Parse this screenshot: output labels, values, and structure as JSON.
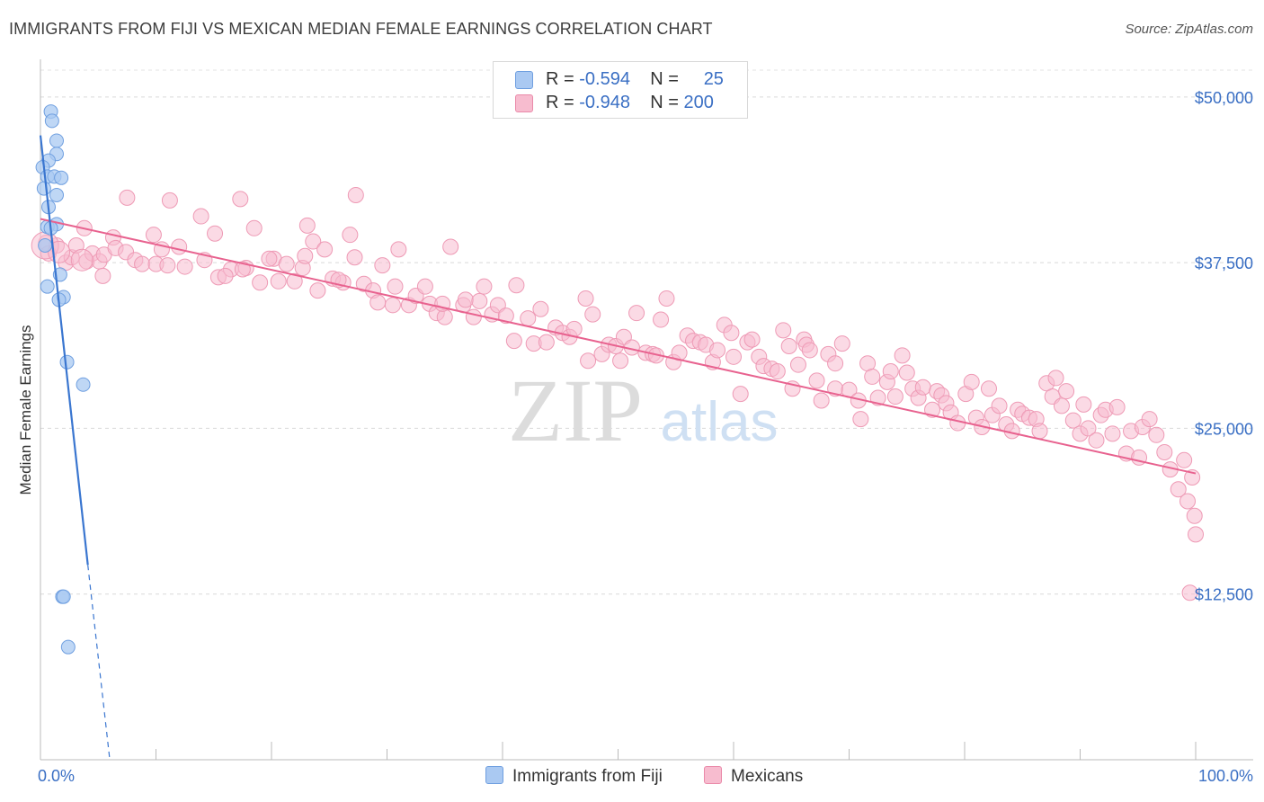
{
  "title": "IMMIGRANTS FROM FIJI VS MEXICAN MEDIAN FEMALE EARNINGS CORRELATION CHART",
  "source": "Source: ZipAtlas.com",
  "watermark": {
    "zip": "ZIP",
    "atlas": "atlas"
  },
  "legend": {
    "rows": [
      {
        "r_label": "R = ",
        "r_value": "-0.594",
        "n_label": "N = ",
        "n_value": "25",
        "color": "#a9c8f0"
      },
      {
        "r_label": "R = ",
        "r_value": "-0.948",
        "n_label": "N = ",
        "n_value": "200",
        "color": "#f6b8cb"
      }
    ]
  },
  "bottom_legend": {
    "fiji": "Immigrants from Fiji",
    "mexicans": "Mexicans"
  },
  "chart_data": {
    "type": "scatter",
    "ylabel": "Median Female Earnings",
    "xlabel": "",
    "x_tick_labels": {
      "left": "0.0%",
      "right": "100.0%"
    },
    "xlim": [
      0,
      100
    ],
    "ylim": [
      0,
      52500
    ],
    "y_ticks": [
      12500,
      25000,
      37500,
      50000
    ],
    "y_tick_labels": [
      "$12,500",
      "$25,000",
      "$37,500",
      "$50,000"
    ],
    "grid": true,
    "colors": {
      "fiji": "#3a76d0",
      "fiji_fill": "#aac9f2",
      "mex": "#e8628f",
      "mex_fill": "#f7bccf",
      "axis_label": "#3a6fc4"
    },
    "series": [
      {
        "name": "Immigrants from Fiji",
        "points": [
          [
            0.9,
            48900
          ],
          [
            1.0,
            48200
          ],
          [
            1.4,
            46700
          ],
          [
            1.4,
            45700
          ],
          [
            0.7,
            45200
          ],
          [
            0.2,
            44700
          ],
          [
            0.6,
            44000
          ],
          [
            1.2,
            44000
          ],
          [
            1.8,
            43900
          ],
          [
            0.3,
            43100
          ],
          [
            1.4,
            42600
          ],
          [
            0.7,
            41700
          ],
          [
            1.4,
            40400
          ],
          [
            0.6,
            40200
          ],
          [
            0.9,
            40100
          ],
          [
            0.4,
            38800
          ],
          [
            1.7,
            36600
          ],
          [
            0.6,
            35700
          ],
          [
            2.0,
            34900
          ],
          [
            1.6,
            34700
          ],
          [
            2.3,
            30000
          ],
          [
            3.7,
            28300
          ],
          [
            1.9,
            12300
          ],
          [
            2.0,
            12300
          ],
          [
            2.4,
            8500
          ]
        ],
        "trend": {
          "x": [
            0,
            4.1
          ],
          "y": [
            47100,
            14700
          ]
        },
        "trend_dashed": {
          "x": [
            4.1,
            6.0
          ],
          "y": [
            14700,
            0
          ]
        }
      },
      {
        "name": "Mexicans",
        "points": [
          [
            0.5,
            39000
          ],
          [
            0.7,
            38200
          ],
          [
            1.4,
            38800
          ],
          [
            2.2,
            37500
          ],
          [
            2.7,
            37900
          ],
          [
            3.1,
            38800
          ],
          [
            3.8,
            40100
          ],
          [
            4.0,
            37600
          ],
          [
            4.5,
            38200
          ],
          [
            5.1,
            37600
          ],
          [
            5.5,
            38100
          ],
          [
            5.4,
            36500
          ],
          [
            6.3,
            39400
          ],
          [
            6.5,
            38600
          ],
          [
            7.5,
            42400
          ],
          [
            7.4,
            38300
          ],
          [
            8.2,
            37700
          ],
          [
            8.8,
            37400
          ],
          [
            9.8,
            39600
          ],
          [
            10.0,
            37400
          ],
          [
            10.5,
            38500
          ],
          [
            11.2,
            42200
          ],
          [
            11.0,
            37300
          ],
          [
            12.0,
            38700
          ],
          [
            12.5,
            37200
          ],
          [
            13.9,
            41000
          ],
          [
            14.2,
            37700
          ],
          [
            15.1,
            39700
          ],
          [
            15.4,
            36400
          ],
          [
            16.5,
            37000
          ],
          [
            16.0,
            36500
          ],
          [
            17.3,
            42300
          ],
          [
            17.8,
            37100
          ],
          [
            17.5,
            37000
          ],
          [
            18.5,
            40100
          ],
          [
            19.0,
            36000
          ],
          [
            20.2,
            37800
          ],
          [
            19.8,
            37800
          ],
          [
            20.6,
            36100
          ],
          [
            21.3,
            37400
          ],
          [
            22.0,
            36100
          ],
          [
            23.1,
            40300
          ],
          [
            22.7,
            37100
          ],
          [
            23.6,
            39100
          ],
          [
            22.9,
            38000
          ],
          [
            24.0,
            35400
          ],
          [
            24.6,
            38500
          ],
          [
            25.3,
            36300
          ],
          [
            26.2,
            36000
          ],
          [
            25.8,
            36200
          ],
          [
            27.3,
            42600
          ],
          [
            26.8,
            39600
          ],
          [
            28.0,
            35900
          ],
          [
            27.2,
            37900
          ],
          [
            28.8,
            35400
          ],
          [
            29.6,
            37300
          ],
          [
            29.2,
            34500
          ],
          [
            30.5,
            34300
          ],
          [
            31.0,
            38500
          ],
          [
            30.7,
            35700
          ],
          [
            31.9,
            34300
          ],
          [
            32.5,
            35000
          ],
          [
            33.3,
            35700
          ],
          [
            33.7,
            34400
          ],
          [
            34.3,
            33700
          ],
          [
            35.0,
            33400
          ],
          [
            35.5,
            38700
          ],
          [
            34.8,
            34400
          ],
          [
            36.6,
            34300
          ],
          [
            37.5,
            33400
          ],
          [
            36.8,
            34700
          ],
          [
            38.0,
            34600
          ],
          [
            38.4,
            35700
          ],
          [
            39.1,
            33600
          ],
          [
            39.6,
            34300
          ],
          [
            40.3,
            33500
          ],
          [
            41.0,
            31600
          ],
          [
            41.2,
            35800
          ],
          [
            42.2,
            33300
          ],
          [
            42.7,
            31400
          ],
          [
            43.3,
            34000
          ],
          [
            43.8,
            31500
          ],
          [
            44.6,
            32600
          ],
          [
            45.2,
            32200
          ],
          [
            45.8,
            31900
          ],
          [
            46.2,
            32500
          ],
          [
            47.2,
            34800
          ],
          [
            47.4,
            30100
          ],
          [
            47.8,
            33600
          ],
          [
            48.6,
            30600
          ],
          [
            49.2,
            31300
          ],
          [
            49.8,
            31200
          ],
          [
            50.2,
            30100
          ],
          [
            50.5,
            31900
          ],
          [
            51.6,
            33700
          ],
          [
            51.2,
            31100
          ],
          [
            52.4,
            30700
          ],
          [
            53.0,
            30600
          ],
          [
            53.7,
            33200
          ],
          [
            53.3,
            30500
          ],
          [
            54.2,
            34800
          ],
          [
            54.8,
            30000
          ],
          [
            55.3,
            30700
          ],
          [
            56.0,
            32000
          ],
          [
            56.5,
            31600
          ],
          [
            57.1,
            31500
          ],
          [
            57.6,
            31300
          ],
          [
            58.2,
            30000
          ],
          [
            58.6,
            30900
          ],
          [
            59.2,
            32800
          ],
          [
            59.8,
            32200
          ],
          [
            60.0,
            30400
          ],
          [
            60.6,
            27600
          ],
          [
            61.2,
            31500
          ],
          [
            61.6,
            31700
          ],
          [
            62.2,
            30400
          ],
          [
            62.6,
            29700
          ],
          [
            63.3,
            29500
          ],
          [
            63.8,
            29300
          ],
          [
            64.3,
            32400
          ],
          [
            64.8,
            31200
          ],
          [
            65.1,
            28000
          ],
          [
            65.6,
            29800
          ],
          [
            66.1,
            31700
          ],
          [
            66.3,
            31300
          ],
          [
            66.6,
            30900
          ],
          [
            67.2,
            28600
          ],
          [
            67.6,
            27100
          ],
          [
            68.2,
            30600
          ],
          [
            68.8,
            29900
          ],
          [
            68.8,
            28000
          ],
          [
            69.4,
            31400
          ],
          [
            70.0,
            27900
          ],
          [
            70.8,
            27100
          ],
          [
            71.0,
            25700
          ],
          [
            71.6,
            29900
          ],
          [
            72.0,
            28900
          ],
          [
            72.5,
            27300
          ],
          [
            73.3,
            28500
          ],
          [
            73.6,
            29300
          ],
          [
            74.0,
            27400
          ],
          [
            74.6,
            30500
          ],
          [
            75.0,
            29200
          ],
          [
            75.5,
            28000
          ],
          [
            76.0,
            27300
          ],
          [
            76.4,
            28100
          ],
          [
            77.2,
            26400
          ],
          [
            77.6,
            27800
          ],
          [
            78.0,
            27500
          ],
          [
            78.4,
            26900
          ],
          [
            78.8,
            26200
          ],
          [
            79.4,
            25400
          ],
          [
            80.1,
            27600
          ],
          [
            80.6,
            28500
          ],
          [
            81.0,
            25800
          ],
          [
            81.5,
            25100
          ],
          [
            82.1,
            28000
          ],
          [
            82.4,
            26000
          ],
          [
            83.0,
            26700
          ],
          [
            83.6,
            25300
          ],
          [
            84.1,
            24800
          ],
          [
            84.6,
            26400
          ],
          [
            85.0,
            26100
          ],
          [
            85.6,
            25800
          ],
          [
            86.2,
            25700
          ],
          [
            86.5,
            24800
          ],
          [
            87.1,
            28400
          ],
          [
            87.6,
            27400
          ],
          [
            87.9,
            28800
          ],
          [
            88.4,
            26700
          ],
          [
            88.8,
            27800
          ],
          [
            89.4,
            25600
          ],
          [
            90.0,
            24600
          ],
          [
            90.3,
            26800
          ],
          [
            90.7,
            25000
          ],
          [
            91.4,
            24100
          ],
          [
            91.8,
            26000
          ],
          [
            92.2,
            26400
          ],
          [
            92.8,
            24600
          ],
          [
            93.2,
            26600
          ],
          [
            94.0,
            23100
          ],
          [
            94.4,
            24800
          ],
          [
            95.1,
            22800
          ],
          [
            95.4,
            25100
          ],
          [
            96.0,
            25700
          ],
          [
            96.6,
            24500
          ],
          [
            97.3,
            23200
          ],
          [
            97.8,
            21900
          ],
          [
            98.5,
            20400
          ],
          [
            99.0,
            22600
          ],
          [
            99.5,
            12600
          ],
          [
            99.9,
            18400
          ],
          [
            100.0,
            17000
          ],
          [
            99.3,
            19500
          ],
          [
            99.7,
            21300
          ]
        ],
        "trend": {
          "x": [
            0,
            100
          ],
          "y": [
            40800,
            21600
          ]
        }
      }
    ]
  }
}
